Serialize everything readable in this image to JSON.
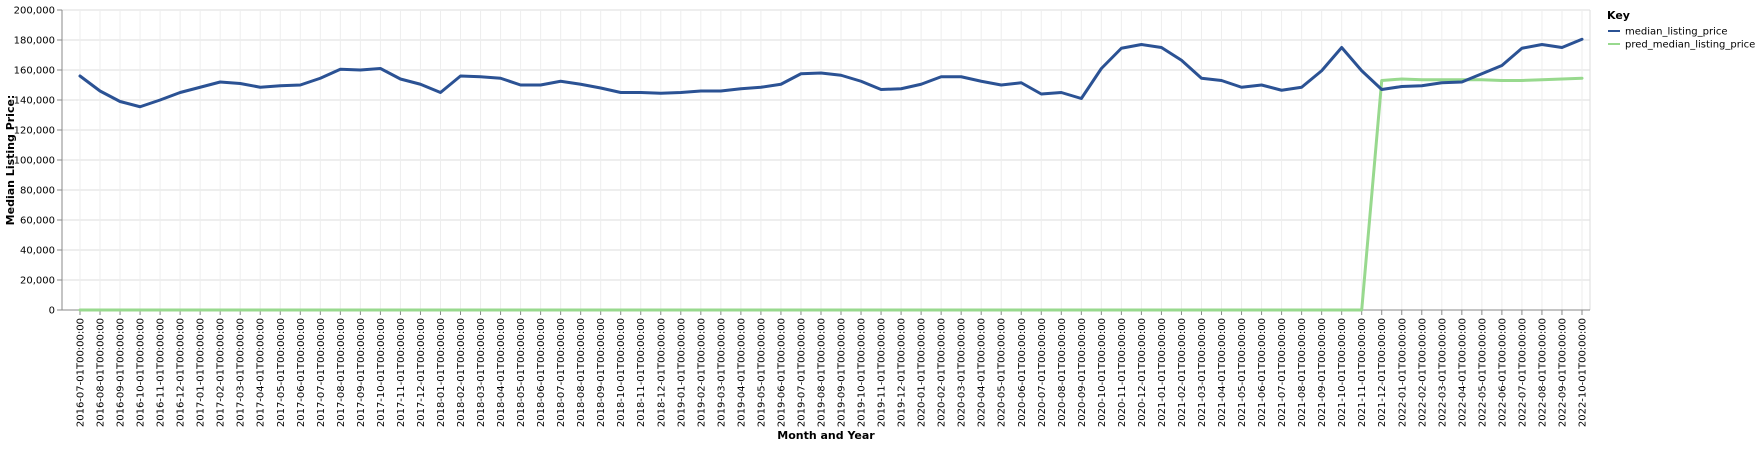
{
  "chart_data": {
    "type": "line",
    "xlabel": "Month and Year",
    "ylabel": "Median Listing Price:",
    "ylim": [
      0,
      200000
    ],
    "yticks": [
      "0",
      "20,000",
      "40,000",
      "60,000",
      "80,000",
      "100,000",
      "120,000",
      "140,000",
      "160,000",
      "180,000",
      "200,000"
    ],
    "grid": true,
    "legend": {
      "title": "Key",
      "placement": "top-right"
    },
    "x": [
      "2016-07-01T00:00:00",
      "2016-08-01T00:00:00",
      "2016-09-01T00:00:00",
      "2016-10-01T00:00:00",
      "2016-11-01T00:00:00",
      "2016-12-01T00:00:00",
      "2017-01-01T00:00:00",
      "2017-02-01T00:00:00",
      "2017-03-01T00:00:00",
      "2017-04-01T00:00:00",
      "2017-05-01T00:00:00",
      "2017-06-01T00:00:00",
      "2017-07-01T00:00:00",
      "2017-08-01T00:00:00",
      "2017-09-01T00:00:00",
      "2017-10-01T00:00:00",
      "2017-11-01T00:00:00",
      "2017-12-01T00:00:00",
      "2018-01-01T00:00:00",
      "2018-02-01T00:00:00",
      "2018-03-01T00:00:00",
      "2018-04-01T00:00:00",
      "2018-05-01T00:00:00",
      "2018-06-01T00:00:00",
      "2018-07-01T00:00:00",
      "2018-08-01T00:00:00",
      "2018-09-01T00:00:00",
      "2018-10-01T00:00:00",
      "2018-11-01T00:00:00",
      "2018-12-01T00:00:00",
      "2019-01-01T00:00:00",
      "2019-02-01T00:00:00",
      "2019-03-01T00:00:00",
      "2019-04-01T00:00:00",
      "2019-05-01T00:00:00",
      "2019-06-01T00:00:00",
      "2019-07-01T00:00:00",
      "2019-08-01T00:00:00",
      "2019-09-01T00:00:00",
      "2019-10-01T00:00:00",
      "2019-11-01T00:00:00",
      "2019-12-01T00:00:00",
      "2020-01-01T00:00:00",
      "2020-02-01T00:00:00",
      "2020-03-01T00:00:00",
      "2020-04-01T00:00:00",
      "2020-05-01T00:00:00",
      "2020-06-01T00:00:00",
      "2020-07-01T00:00:00",
      "2020-08-01T00:00:00",
      "2020-09-01T00:00:00",
      "2020-10-01T00:00:00",
      "2020-11-01T00:00:00",
      "2020-12-01T00:00:00",
      "2021-01-01T00:00:00",
      "2021-02-01T00:00:00",
      "2021-03-01T00:00:00",
      "2021-04-01T00:00:00",
      "2021-05-01T00:00:00",
      "2021-06-01T00:00:00",
      "2021-07-01T00:00:00",
      "2021-08-01T00:00:00",
      "2021-09-01T00:00:00",
      "2021-10-01T00:00:00",
      "2021-11-01T00:00:00",
      "2021-12-01T00:00:00",
      "2022-01-01T00:00:00",
      "2022-02-01T00:00:00",
      "2022-03-01T00:00:00",
      "2022-04-01T00:00:00",
      "2022-05-01T00:00:00",
      "2022-06-01T00:00:00",
      "2022-07-01T00:00:00",
      "2022-08-01T00:00:00",
      "2022-09-01T00:00:00",
      "2022-10-01T00:00:00"
    ],
    "series": [
      {
        "name": "median_listing_price",
        "color": "#2b5294",
        "values": [
          156000,
          146000,
          139000,
          135500,
          140000,
          145000,
          148500,
          152000,
          151000,
          148500,
          149500,
          150000,
          154500,
          160500,
          160000,
          161000,
          154000,
          150500,
          145000,
          156000,
          155500,
          154500,
          150000,
          150000,
          152500,
          150500,
          148000,
          145000,
          145000,
          144500,
          145000,
          146000,
          146000,
          147500,
          148500,
          150500,
          157500,
          158000,
          156500,
          152500,
          147000,
          147500,
          150500,
          155500,
          155500,
          152500,
          150000,
          151500,
          144000,
          145000,
          141000,
          161000,
          174500,
          177000,
          175000,
          166500,
          154500,
          153000,
          148500,
          150000,
          146500,
          148500,
          159500,
          175000,
          159500,
          147000,
          149000,
          149500,
          151500,
          152000,
          157500,
          163000,
          174500,
          177000,
          175000,
          180500
        ]
      },
      {
        "name": "pred_median_listing_price",
        "color": "#98d98e",
        "values": [
          0,
          0,
          0,
          0,
          0,
          0,
          0,
          0,
          0,
          0,
          0,
          0,
          0,
          0,
          0,
          0,
          0,
          0,
          0,
          0,
          0,
          0,
          0,
          0,
          0,
          0,
          0,
          0,
          0,
          0,
          0,
          0,
          0,
          0,
          0,
          0,
          0,
          0,
          0,
          0,
          0,
          0,
          0,
          0,
          0,
          0,
          0,
          0,
          0,
          0,
          0,
          0,
          0,
          0,
          0,
          0,
          0,
          0,
          0,
          0,
          0,
          0,
          0,
          0,
          0,
          0,
          0,
          0,
          0,
          0,
          0,
          0,
          0,
          0,
          0,
          0
        ]
      }
    ],
    "pred_override": {
      "from_index": 65,
      "values": [
        153000,
        154000,
        153500,
        153500,
        153500,
        153500,
        153000,
        153000,
        153500,
        154000,
        154500
      ]
    }
  }
}
